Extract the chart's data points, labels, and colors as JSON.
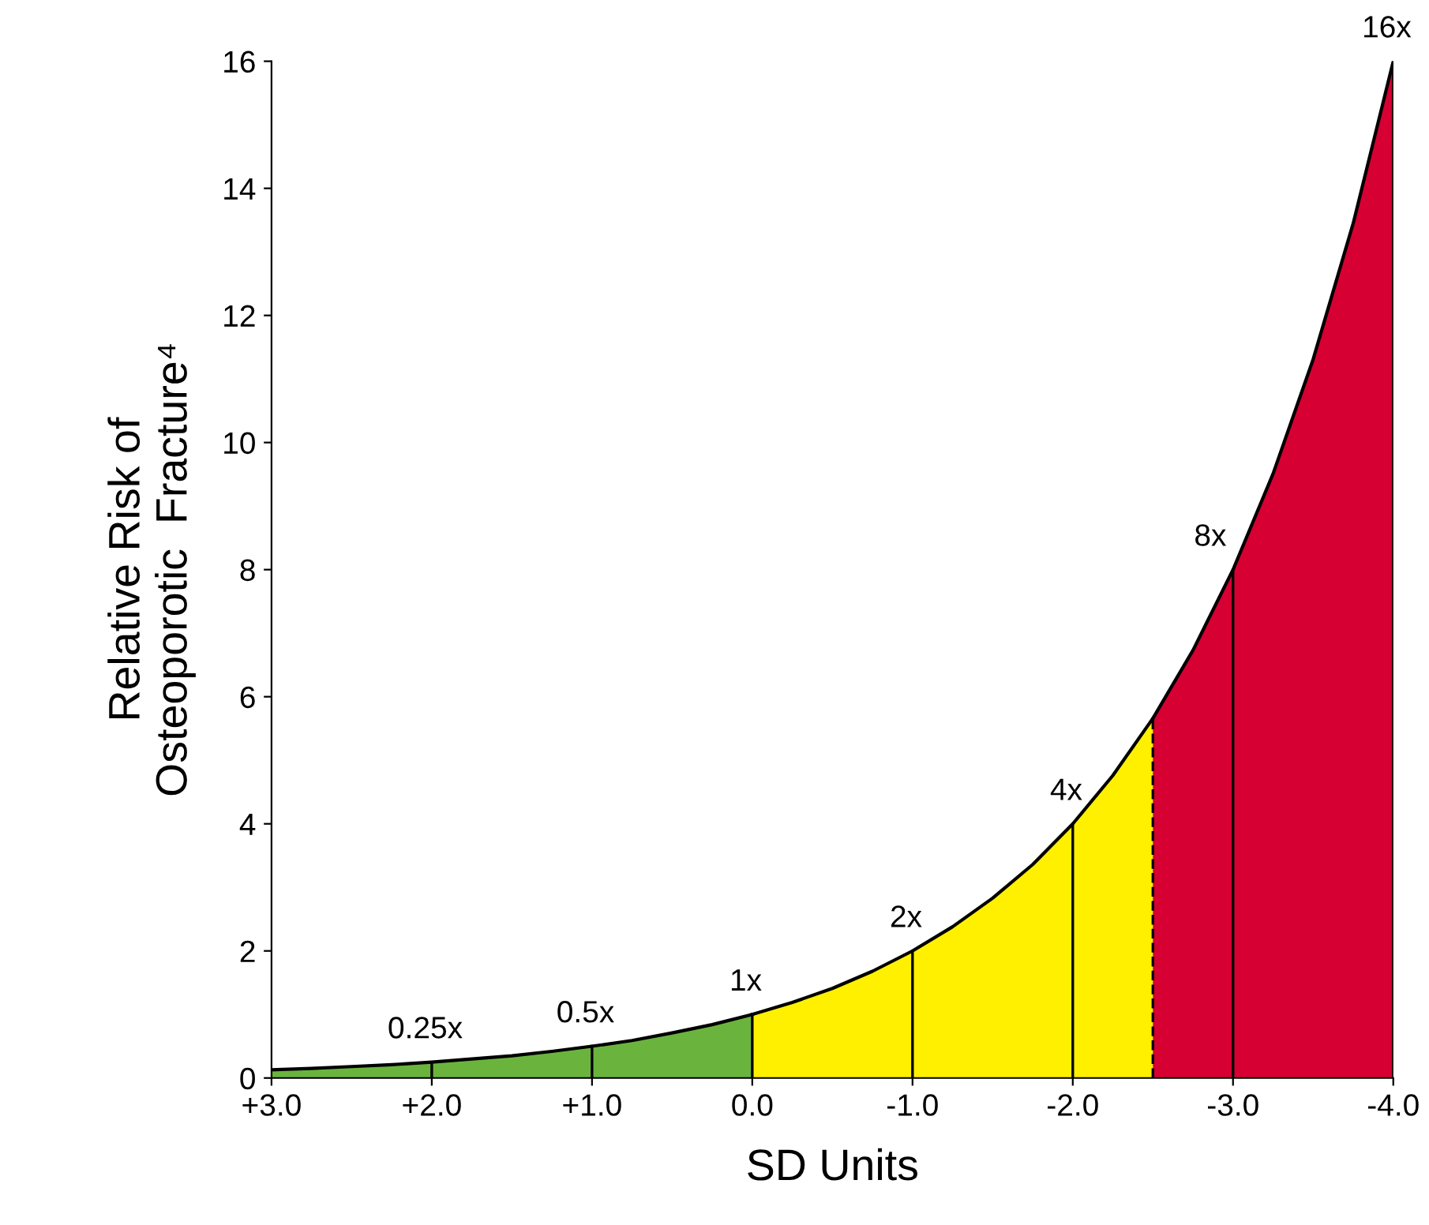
{
  "chart_data": {
    "type": "area",
    "xlabel": "SD Units",
    "ylabel": "Relative Risk of\nOsteoporotic  Fracture⁴",
    "xlim": [
      3,
      -4
    ],
    "ylim": [
      0,
      16
    ],
    "xticks": [
      {
        "value": 3,
        "label": "+3.0"
      },
      {
        "value": 2,
        "label": "+2.0"
      },
      {
        "value": 1,
        "label": "+1.0"
      },
      {
        "value": 0,
        "label": "0.0"
      },
      {
        "value": -1,
        "label": "-1.0"
      },
      {
        "value": -2,
        "label": "-2.0"
      },
      {
        "value": -3,
        "label": "-3.0"
      },
      {
        "value": -4,
        "label": "-4.0"
      }
    ],
    "yticks": [
      0,
      2,
      4,
      6,
      8,
      10,
      12,
      14,
      16
    ],
    "grid": false,
    "series": [
      {
        "color": "#6ab43e",
        "x": [
          3,
          2.75,
          2.5,
          2.25,
          2,
          1.75,
          1.5,
          1.25,
          1,
          0.75,
          0.5,
          0.25,
          0
        ],
        "values": [
          0.13,
          0.15,
          0.18,
          0.21,
          0.25,
          0.3,
          0.35,
          0.42,
          0.5,
          0.59,
          0.71,
          0.84,
          1
        ]
      },
      {
        "color": "#fff000",
        "x": [
          0,
          -0.25,
          -0.5,
          -0.75,
          -1,
          -1.25,
          -1.5,
          -1.75,
          -2,
          -2.25,
          -2.5
        ],
        "values": [
          1,
          1.19,
          1.41,
          1.68,
          2,
          2.38,
          2.83,
          3.36,
          4,
          4.76,
          5.66
        ]
      },
      {
        "color": "#d60032",
        "x": [
          -2.5,
          -2.75,
          -3,
          -3.25,
          -3.5,
          -3.75,
          -4
        ],
        "values": [
          5.66,
          6.73,
          8,
          9.51,
          11.31,
          13.45,
          16
        ]
      }
    ],
    "ref_lines": [
      {
        "axis": "x",
        "value": -2.5,
        "line_style": "dashed",
        "color": "#000000"
      }
    ],
    "annotations": [
      {
        "text": "0.25x",
        "x": 2,
        "y": 0.25
      },
      {
        "text": "0.5x",
        "x": 1,
        "y": 0.5
      },
      {
        "text": "1x",
        "x": 0,
        "y": 1
      },
      {
        "text": "2x",
        "x": -1,
        "y": 2
      },
      {
        "text": "4x",
        "x": -2,
        "y": 4
      },
      {
        "text": "8x",
        "x": -3,
        "y": 8
      },
      {
        "text": "16x",
        "x": -4,
        "y": 16
      }
    ]
  }
}
